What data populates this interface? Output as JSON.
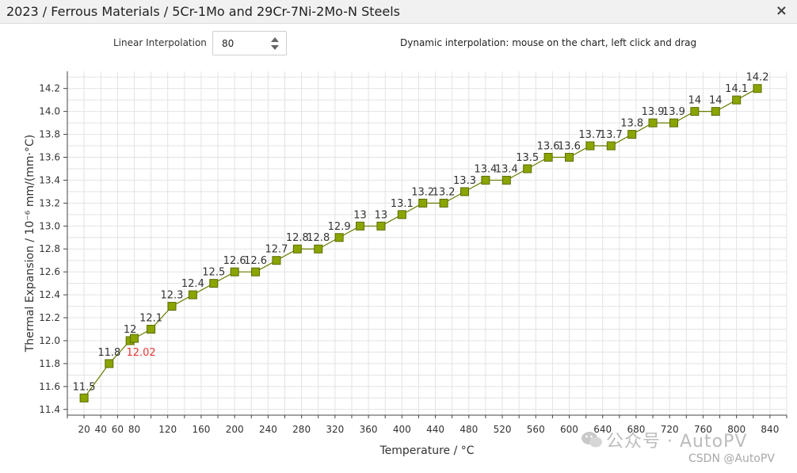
{
  "window": {
    "title": "2023 / Ferrous Materials / 5Cr-1Mo and 29Cr-7Ni-2Mo-N Steels",
    "close_glyph": "×"
  },
  "controls": {
    "interp_label": "Linear Interpolation",
    "interp_value": "80",
    "hint": "Dynamic interpolation: mouse on the chart, left click and drag"
  },
  "chart_data": {
    "type": "line",
    "xlabel": "Temperature / °C",
    "ylabel": "Thermal Expansion / 10⁻⁶ mm/(mm·°C)",
    "xlim": [
      0,
      860
    ],
    "ylim": [
      11.35,
      14.35
    ],
    "x_ticks": [
      20,
      40,
      60,
      80,
      120,
      160,
      200,
      240,
      280,
      320,
      360,
      400,
      440,
      480,
      520,
      560,
      600,
      640,
      680,
      720,
      760,
      800,
      840
    ],
    "y_ticks": [
      11.4,
      11.6,
      11.8,
      12.0,
      12.2,
      12.4,
      12.6,
      12.8,
      13.0,
      13.2,
      13.4,
      13.6,
      13.8,
      14.0,
      14.2
    ],
    "y_tick_labels": [
      "11.4",
      "11.6",
      "11.8",
      "12.0",
      "12.2",
      "12.4",
      "12.6",
      "12.8",
      "13.0",
      "13.2",
      "13.4",
      "13.6",
      "13.8",
      "14.0",
      "14.2"
    ],
    "grid": true,
    "series_color": "#8aa400",
    "line_color": "#6b7a00",
    "series": [
      {
        "x": [
          20,
          50,
          75,
          100,
          125,
          150,
          175,
          200,
          225,
          250,
          275,
          300,
          325,
          350,
          375,
          400,
          425,
          450,
          475,
          500,
          525,
          550,
          575,
          600,
          625,
          650,
          675,
          700,
          725,
          750,
          775,
          800,
          825
        ],
        "y": [
          11.5,
          11.8,
          12.0,
          12.1,
          12.3,
          12.4,
          12.5,
          12.6,
          12.6,
          12.7,
          12.8,
          12.8,
          12.9,
          13.0,
          13.0,
          13.1,
          13.2,
          13.2,
          13.3,
          13.4,
          13.4,
          13.5,
          13.6,
          13.6,
          13.7,
          13.7,
          13.8,
          13.9,
          13.9,
          14.0,
          14.0,
          14.1,
          14.2
        ],
        "labels": [
          "11.5",
          "11.8",
          "12",
          "12.1",
          "12.3",
          "12.4",
          "12.5",
          "12.6",
          "12.6",
          "12.7",
          "12.8",
          "12.8",
          "12.9",
          "13",
          "13",
          "13.1",
          "13.2",
          "13.2",
          "13.3",
          "13.4",
          "13.4",
          "13.5",
          "13.6",
          "13.6",
          "13.7",
          "13.7",
          "13.8",
          "13.9",
          "13.9",
          "14",
          "14",
          "14.1",
          "14.2"
        ]
      }
    ],
    "interpolated_point": {
      "x": 80,
      "y": 12.02,
      "label": "12.02",
      "color": "#e53935"
    }
  },
  "watermark": {
    "main": "公众号 · AutoPV",
    "sub": "CSDN @AutoPV"
  }
}
